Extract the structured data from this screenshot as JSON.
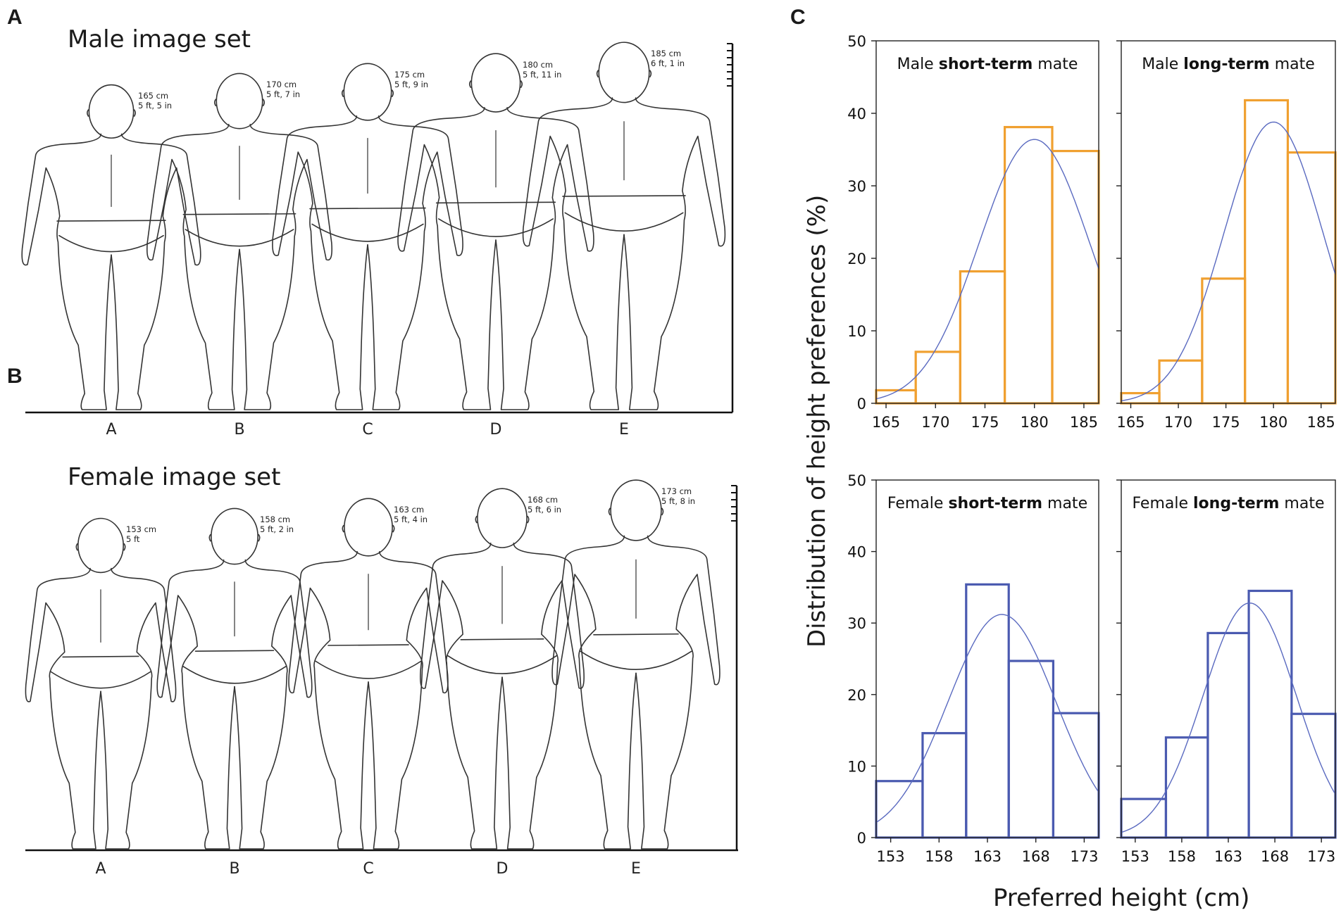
{
  "panels": {
    "A": {
      "letter": "A",
      "title": "Male image set",
      "figures": [
        {
          "letter": "A",
          "cm": "165 cm",
          "ftin": "5 ft, 5 in"
        },
        {
          "letter": "B",
          "cm": "170 cm",
          "ftin": "5 ft, 7 in"
        },
        {
          "letter": "C",
          "cm": "175 cm",
          "ftin": "5 ft, 9 in"
        },
        {
          "letter": "D",
          "cm": "180 cm",
          "ftin": "5 ft, 11 in"
        },
        {
          "letter": "E",
          "cm": "185 cm",
          "ftin": "6 ft, 1 in"
        }
      ]
    },
    "B": {
      "letter": "B",
      "title": "Female image set",
      "figures": [
        {
          "letter": "A",
          "cm": "153 cm",
          "ftin": "5 ft"
        },
        {
          "letter": "B",
          "cm": "158 cm",
          "ftin": "5 ft, 2 in"
        },
        {
          "letter": "C",
          "cm": "163 cm",
          "ftin": "5 ft, 4 in"
        },
        {
          "letter": "D",
          "cm": "168 cm",
          "ftin": "5 ft, 6 in"
        },
        {
          "letter": "E",
          "cm": "173 cm",
          "ftin": "5 ft, 8 in"
        }
      ]
    },
    "C": {
      "letter": "C",
      "ylabel": "Distribution of height preferences (%)",
      "xlabel": "Preferred height (cm)"
    }
  },
  "colors": {
    "male_bars": "#f0a030",
    "female_bars": "#4a5ab0",
    "curve": "#5a6ac0"
  },
  "chart_data": [
    {
      "type": "bar",
      "title_prefix": "Male ",
      "title_bold": "short-term",
      "title_suffix": " mate",
      "categories": [
        "165",
        "170",
        "175",
        "180",
        "185"
      ],
      "values": [
        1.8,
        7.1,
        18.2,
        38.1,
        34.8
      ],
      "xticks": [
        "165",
        "170",
        "175",
        "180",
        "185"
      ],
      "yticks": [
        "0",
        "10",
        "20",
        "30",
        "40",
        "50"
      ],
      "ylim": [
        0,
        50
      ],
      "curve": {
        "mean": 180,
        "sd": 5.6,
        "peak": 36.4
      }
    },
    {
      "type": "bar",
      "title_prefix": "Male ",
      "title_bold": "long-term",
      "title_suffix": " mate",
      "categories": [
        "165",
        "170",
        "175",
        "180",
        "185"
      ],
      "values": [
        1.4,
        5.9,
        17.2,
        41.8,
        34.6
      ],
      "xticks": [
        "165",
        "170",
        "175",
        "180",
        "185"
      ],
      "yticks": [],
      "ylim": [
        0,
        50
      ],
      "curve": {
        "mean": 180,
        "sd": 5.2,
        "peak": 38.8
      }
    },
    {
      "type": "bar",
      "title_prefix": "Female ",
      "title_bold": "short-term",
      "title_suffix": " mate",
      "categories": [
        "153",
        "158",
        "163",
        "168",
        "173"
      ],
      "values": [
        7.9,
        14.6,
        35.4,
        24.7,
        17.4
      ],
      "xticks": [
        "153",
        "158",
        "163",
        "168",
        "173"
      ],
      "yticks": [
        "0",
        "10",
        "20",
        "30",
        "40",
        "50"
      ],
      "ylim": [
        0,
        50
      ],
      "curve": {
        "mean": 164.5,
        "sd": 5.6,
        "peak": 31.2
      }
    },
    {
      "type": "bar",
      "title_prefix": "Female ",
      "title_bold": "long-term",
      "title_suffix": " mate",
      "categories": [
        "153",
        "158",
        "163",
        "168",
        "173"
      ],
      "values": [
        5.4,
        14.0,
        28.6,
        34.5,
        17.3
      ],
      "xticks": [
        "153",
        "158",
        "163",
        "168",
        "173"
      ],
      "yticks": [],
      "ylim": [
        0,
        50
      ],
      "curve": {
        "mean": 165.3,
        "sd": 5.0,
        "peak": 32.8
      }
    }
  ]
}
